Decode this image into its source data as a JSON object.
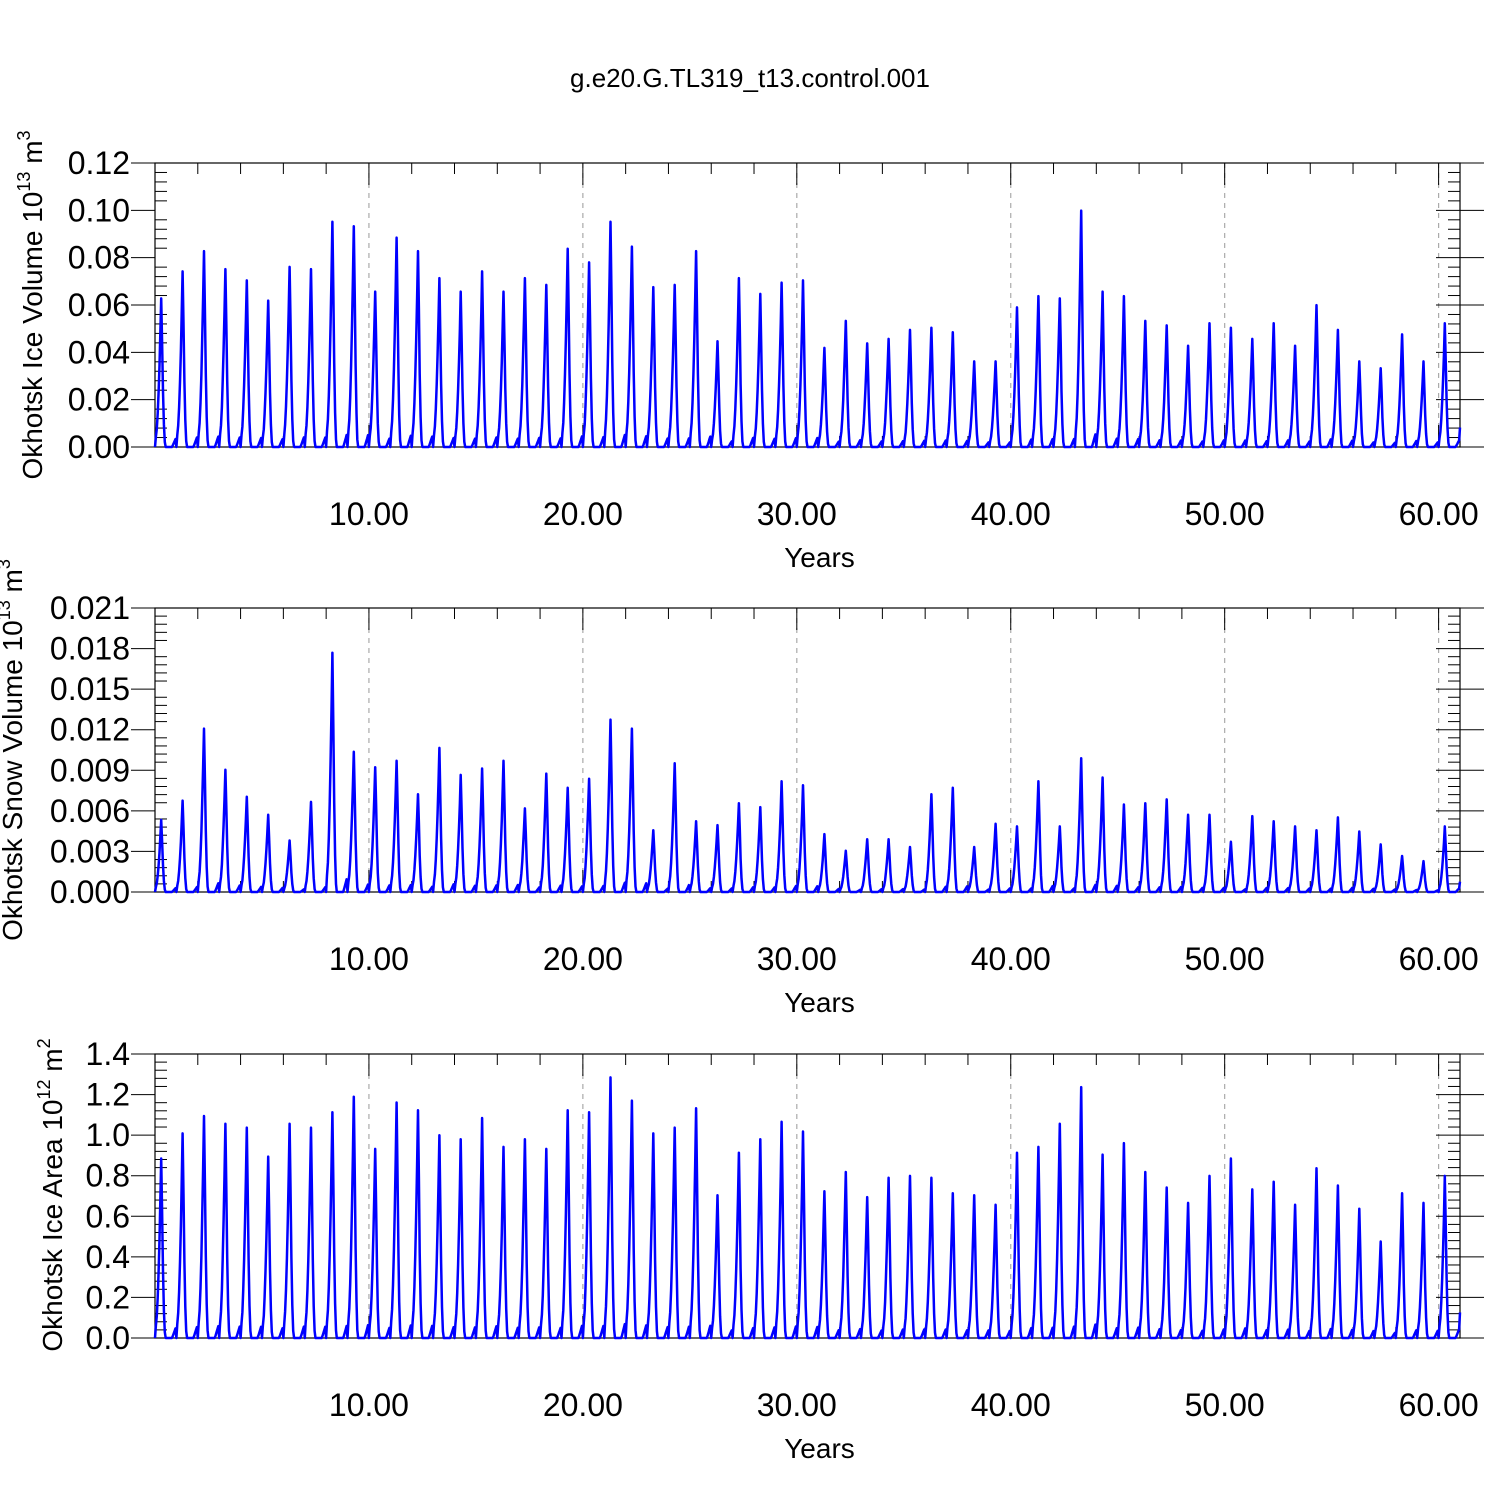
{
  "figure_title": "g.e20.G.TL319_t13.control.001",
  "colors": {
    "line": "#0000ff",
    "axis": "#000000",
    "grid": "#aaaaaa",
    "background": "#ffffff"
  },
  "chart_data": [
    {
      "type": "line",
      "ylabel_main": "Okhotsk Ice Volume 10",
      "ylabel_exp": "13",
      "ylabel_unit": " m",
      "ylabel_unit_exp": "3",
      "xlabel": "Years",
      "xlim": [
        0,
        61
      ],
      "ylim": [
        0,
        0.12
      ],
      "x_ticks": [
        10,
        20,
        30,
        40,
        50,
        60
      ],
      "x_tick_labels": [
        "10.00",
        "20.00",
        "30.00",
        "40.00",
        "50.00",
        "60.00"
      ],
      "y_ticks": [
        0,
        0.02,
        0.04,
        0.06,
        0.08,
        0.1,
        0.12
      ],
      "y_tick_labels": [
        "0.00",
        "0.02",
        "0.04",
        "0.06",
        "0.08",
        "0.10",
        "0.12"
      ],
      "vertical_grid": [
        10,
        20,
        30,
        40,
        50,
        60
      ],
      "series": [
        {
          "annual_peaks": [
            0.066,
            0.078,
            0.087,
            0.079,
            0.074,
            0.065,
            0.08,
            0.079,
            0.1,
            0.098,
            0.069,
            0.093,
            0.087,
            0.075,
            0.069,
            0.078,
            0.069,
            0.075,
            0.072,
            0.088,
            0.082,
            0.1,
            0.089,
            0.071,
            0.072,
            0.087,
            0.047,
            0.075,
            0.068,
            0.073,
            0.074,
            0.044,
            0.056,
            0.046,
            0.048,
            0.052,
            0.053,
            0.051,
            0.038,
            0.038,
            0.062,
            0.067,
            0.066,
            0.105,
            0.069,
            0.067,
            0.056,
            0.054,
            0.045,
            0.055,
            0.053,
            0.048,
            0.055,
            0.045,
            0.063,
            0.052,
            0.038,
            0.035,
            0.05,
            0.038,
            0.055
          ]
        }
      ]
    },
    {
      "type": "line",
      "ylabel_main": "Okhotsk Snow Volume 10",
      "ylabel_exp": "13",
      "ylabel_unit": " m",
      "ylabel_unit_exp": "3",
      "xlabel": "Years",
      "xlim": [
        0,
        61
      ],
      "ylim": [
        0,
        0.021
      ],
      "x_ticks": [
        10,
        20,
        30,
        40,
        50,
        60
      ],
      "x_tick_labels": [
        "10.00",
        "20.00",
        "30.00",
        "40.00",
        "50.00",
        "60.00"
      ],
      "y_ticks": [
        0,
        0.003,
        0.006,
        0.009,
        0.012,
        0.015,
        0.018,
        0.021
      ],
      "y_tick_labels": [
        "0.000",
        "0.003",
        "0.006",
        "0.009",
        "0.012",
        "0.015",
        "0.018",
        "0.021"
      ],
      "vertical_grid": [
        10,
        20,
        30,
        40,
        50,
        60
      ],
      "series": [
        {
          "annual_peaks": [
            0.0056,
            0.0071,
            0.0127,
            0.0095,
            0.0074,
            0.006,
            0.004,
            0.007,
            0.0186,
            0.0109,
            0.0097,
            0.0102,
            0.0076,
            0.0112,
            0.0091,
            0.0096,
            0.0102,
            0.0065,
            0.0092,
            0.0081,
            0.0088,
            0.0134,
            0.0127,
            0.0048,
            0.01,
            0.0055,
            0.0052,
            0.0069,
            0.0066,
            0.0086,
            0.0083,
            0.0045,
            0.0032,
            0.0041,
            0.0041,
            0.0035,
            0.0076,
            0.0081,
            0.0035,
            0.0053,
            0.0051,
            0.0086,
            0.0051,
            0.0104,
            0.0089,
            0.0068,
            0.0069,
            0.0072,
            0.006,
            0.006,
            0.0039,
            0.0059,
            0.0055,
            0.0051,
            0.0048,
            0.0058,
            0.0047,
            0.0037,
            0.0028,
            0.0024,
            0.0051
          ]
        }
      ]
    },
    {
      "type": "line",
      "ylabel_main": "Okhotsk Ice Area 10",
      "ylabel_exp": "12",
      "ylabel_unit": " m",
      "ylabel_unit_exp": "2",
      "xlabel": "Years",
      "xlim": [
        0,
        61
      ],
      "ylim": [
        0,
        1.4
      ],
      "x_ticks": [
        10,
        20,
        30,
        40,
        50,
        60
      ],
      "x_tick_labels": [
        "10.00",
        "20.00",
        "30.00",
        "40.00",
        "50.00",
        "60.00"
      ],
      "y_ticks": [
        0,
        0.2,
        0.4,
        0.6,
        0.8,
        1.0,
        1.2,
        1.4
      ],
      "y_tick_labels": [
        "0.0",
        "0.2",
        "0.4",
        "0.6",
        "0.8",
        "1.0",
        "1.2",
        "1.4"
      ],
      "vertical_grid": [
        10,
        20,
        30,
        40,
        50,
        60
      ],
      "series": [
        {
          "annual_peaks": [
            0.93,
            1.06,
            1.15,
            1.11,
            1.09,
            0.94,
            1.11,
            1.09,
            1.17,
            1.25,
            0.98,
            1.22,
            1.18,
            1.05,
            1.03,
            1.14,
            0.99,
            1.03,
            0.98,
            1.18,
            1.17,
            1.35,
            1.23,
            1.06,
            1.09,
            1.19,
            0.74,
            0.96,
            1.03,
            1.12,
            1.07,
            0.76,
            0.86,
            0.73,
            0.83,
            0.84,
            0.83,
            0.75,
            0.74,
            0.69,
            0.96,
            0.99,
            1.11,
            1.3,
            0.95,
            1.01,
            0.86,
            0.78,
            0.7,
            0.84,
            0.93,
            0.77,
            0.81,
            0.69,
            0.88,
            0.79,
            0.67,
            0.5,
            0.75,
            0.7,
            0.84
          ]
        }
      ]
    }
  ]
}
